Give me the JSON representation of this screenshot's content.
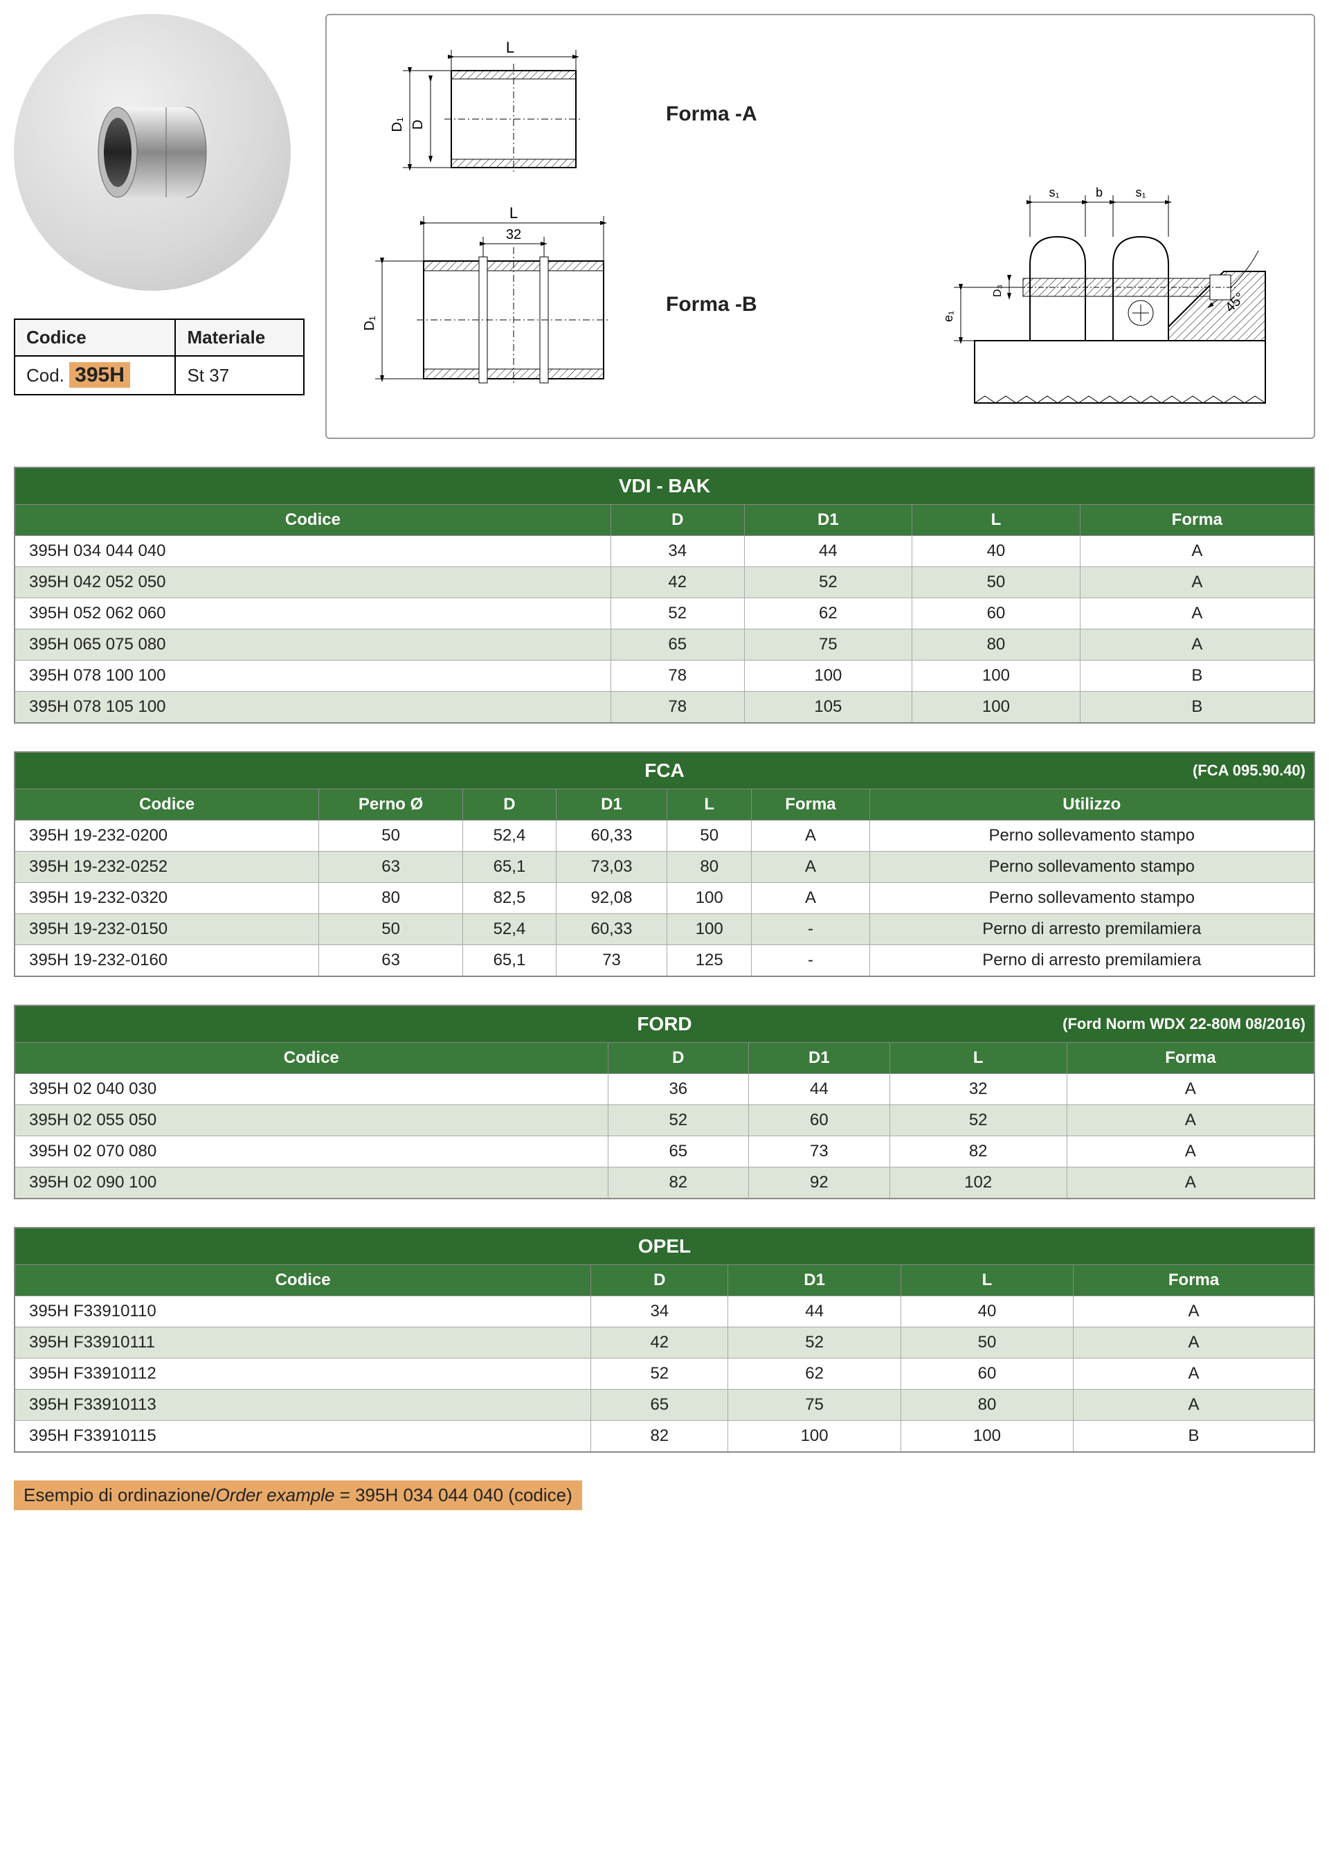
{
  "codeTable": {
    "headers": {
      "code": "Codice",
      "material": "Materiale"
    },
    "codePrefix": "Cod.",
    "codeValue": "395H",
    "material": "St 37"
  },
  "diagrams": {
    "formaA": {
      "dimL": "L",
      "dimD1": "D₁",
      "dimD": "D",
      "label": "Forma -A"
    },
    "formaB": {
      "dimL": "L",
      "dim32": "32",
      "dimD1": "D₁",
      "dimD": "D",
      "label": "Forma -B"
    },
    "detail": {
      "s1": "s₁",
      "b": "b",
      "e1": "e₁",
      "d3": "D₃",
      "angle": "45°"
    }
  },
  "colors": {
    "tableHeaderDark": "#2e6b2e",
    "tableHeaderLight": "#3a7a3a",
    "rowAlt": "#dce5d7",
    "orange": "#e8a968"
  },
  "tables": [
    {
      "title": "VDI - BAK",
      "note": "",
      "columns": [
        "Codice",
        "D",
        "D1",
        "L",
        "Forma"
      ],
      "rows": [
        [
          "395H 034 044 040",
          "34",
          "44",
          "40",
          "A"
        ],
        [
          "395H 042 052 050",
          "42",
          "52",
          "50",
          "A"
        ],
        [
          "395H 052 062 060",
          "52",
          "62",
          "60",
          "A"
        ],
        [
          "395H 065 075 080",
          "65",
          "75",
          "80",
          "A"
        ],
        [
          "395H 078 100 100",
          "78",
          "100",
          "100",
          "B"
        ],
        [
          "395H 078 105 100",
          "78",
          "105",
          "100",
          "B"
        ]
      ]
    },
    {
      "title": "FCA",
      "note": "(FCA 095.90.40)",
      "columns": [
        "Codice",
        "Perno Ø",
        "D",
        "D1",
        "L",
        "Forma",
        "Utilizzo"
      ],
      "rows": [
        [
          "395H 19-232-0200",
          "50",
          "52,4",
          "60,33",
          "50",
          "A",
          "Perno sollevamento stampo"
        ],
        [
          "395H 19-232-0252",
          "63",
          "65,1",
          "73,03",
          "80",
          "A",
          "Perno sollevamento stampo"
        ],
        [
          "395H 19-232-0320",
          "80",
          "82,5",
          "92,08",
          "100",
          "A",
          "Perno sollevamento stampo"
        ],
        [
          "395H 19-232-0150",
          "50",
          "52,4",
          "60,33",
          "100",
          "-",
          "Perno di arresto premilamiera"
        ],
        [
          "395H 19-232-0160",
          "63",
          "65,1",
          "73",
          "125",
          "-",
          "Perno di arresto premilamiera"
        ]
      ]
    },
    {
      "title": "FORD",
      "note": "(Ford Norm WDX 22-80M 08/2016)",
      "columns": [
        "Codice",
        "D",
        "D1",
        "L",
        "Forma"
      ],
      "rows": [
        [
          "395H 02 040 030",
          "36",
          "44",
          "32",
          "A"
        ],
        [
          "395H 02 055 050",
          "52",
          "60",
          "52",
          "A"
        ],
        [
          "395H 02 070 080",
          "65",
          "73",
          "82",
          "A"
        ],
        [
          "395H 02 090 100",
          "82",
          "92",
          "102",
          "A"
        ]
      ]
    },
    {
      "title": "OPEL",
      "note": "",
      "columns": [
        "Codice",
        "D",
        "D1",
        "L",
        "Forma"
      ],
      "rows": [
        [
          "395H F33910110",
          "34",
          "44",
          "40",
          "A"
        ],
        [
          "395H F33910111",
          "42",
          "52",
          "50",
          "A"
        ],
        [
          "395H F33910112",
          "52",
          "62",
          "60",
          "A"
        ],
        [
          "395H F33910113",
          "65",
          "75",
          "80",
          "A"
        ],
        [
          "395H F33910115",
          "82",
          "100",
          "100",
          "B"
        ]
      ]
    }
  ],
  "orderExample": {
    "label": "Esempio di ordinazione/",
    "labelItalic": "Order example",
    "value": " = 395H 034 044 040 (codice)"
  }
}
